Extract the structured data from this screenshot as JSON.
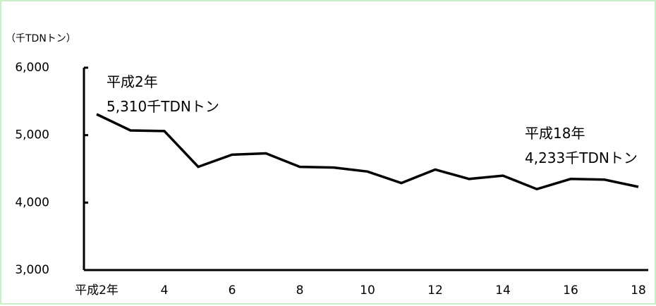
{
  "chart_data": {
    "type": "line",
    "unit_label": "（千TDNトン）",
    "x": [
      2,
      3,
      4,
      5,
      6,
      7,
      8,
      9,
      10,
      11,
      12,
      13,
      14,
      15,
      16,
      17,
      18
    ],
    "x_tick_values": [
      2,
      4,
      6,
      8,
      10,
      12,
      14,
      16,
      18
    ],
    "x_tick_labels": [
      "平成2年",
      "4",
      "6",
      "8",
      "10",
      "12",
      "14",
      "16",
      "18"
    ],
    "series": [
      {
        "values": [
          5310,
          5070,
          5060,
          4530,
          4710,
          4730,
          4530,
          4520,
          4460,
          4290,
          4490,
          4350,
          4400,
          4200,
          4350,
          4340,
          4233
        ]
      }
    ],
    "y_ticks": [
      3000,
      4000,
      5000,
      6000
    ],
    "y_tick_labels": [
      "3,000",
      "4,000",
      "5,000",
      "6,000"
    ],
    "ylim": [
      3000,
      6000
    ],
    "xlim": [
      2,
      18
    ],
    "grid": false,
    "annotations": [
      {
        "lines": [
          "平成2年",
          "5,310千TDNトン"
        ]
      },
      {
        "lines": [
          "平成18年",
          "4,233千TDNトン"
        ]
      }
    ],
    "colors": {
      "line": "#000000",
      "axis": "#000000",
      "frame_border": "#c8f0c8"
    }
  }
}
